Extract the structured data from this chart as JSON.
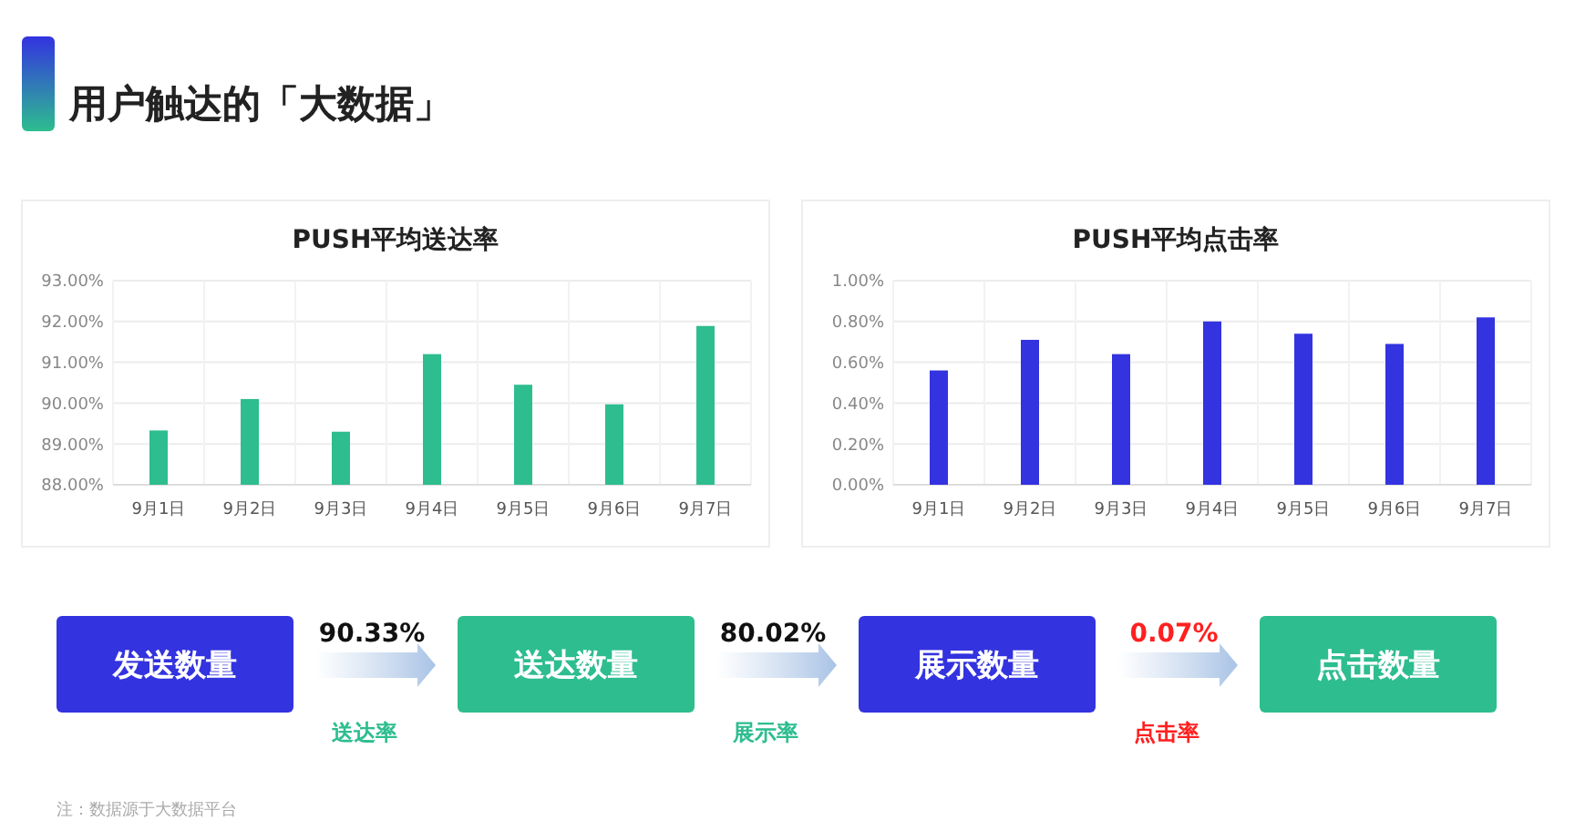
{
  "chart_data": [
    {
      "type": "other",
      "title": "用户触达的「大数据」"
    },
    {
      "type": "bar",
      "title": "PUSH平均送达率",
      "categories": [
        "9月1日",
        "9月2日",
        "9月3日",
        "9月4日",
        "9月5日",
        "9月6日",
        "9月7日"
      ],
      "values": [
        89.33,
        90.1,
        89.3,
        91.2,
        90.45,
        89.97,
        91.89
      ],
      "color": "#2ebd8f",
      "ylim": [
        88,
        93
      ],
      "yticks": [
        {
          "value": 88,
          "label": "88.00%"
        },
        {
          "value": 89,
          "label": "89.00%"
        },
        {
          "value": 90,
          "label": "90.00%"
        },
        {
          "value": 91,
          "label": "91.00%"
        },
        {
          "value": 92,
          "label": "92.00%"
        },
        {
          "value": 93,
          "label": "93.00%"
        }
      ],
      "grid": true
    },
    {
      "type": "bar",
      "title": "PUSH平均点击率",
      "categories": [
        "9月1日",
        "9月2日",
        "9月3日",
        "9月4日",
        "9月5日",
        "9月6日",
        "9月7日"
      ],
      "values": [
        0.56,
        0.71,
        0.64,
        0.8,
        0.74,
        0.69,
        0.82
      ],
      "color": "#3333e0",
      "ylim": [
        0,
        1
      ],
      "yticks": [
        {
          "value": 0,
          "label": "0.00%"
        },
        {
          "value": 0.2,
          "label": "0.20%"
        },
        {
          "value": 0.4,
          "label": "0.40%"
        },
        {
          "value": 0.6,
          "label": "0.60%"
        },
        {
          "value": 0.8,
          "label": "0.80%"
        },
        {
          "value": 1,
          "label": "1.00%"
        }
      ],
      "grid": true
    },
    {
      "type": "other",
      "categories": [
        "发送数量",
        "送达数量",
        "展示数量",
        "点击数量"
      ],
      "colors": [
        "#3333e0",
        "#2ebd8f",
        "#3333e0",
        "#2ebd8f"
      ],
      "annotations": [
        "90.33%",
        "送达率",
        "80.02%",
        "展示率",
        "0.07%",
        "点击率",
        "注：数据源于大数据平台"
      ]
    }
  ]
}
